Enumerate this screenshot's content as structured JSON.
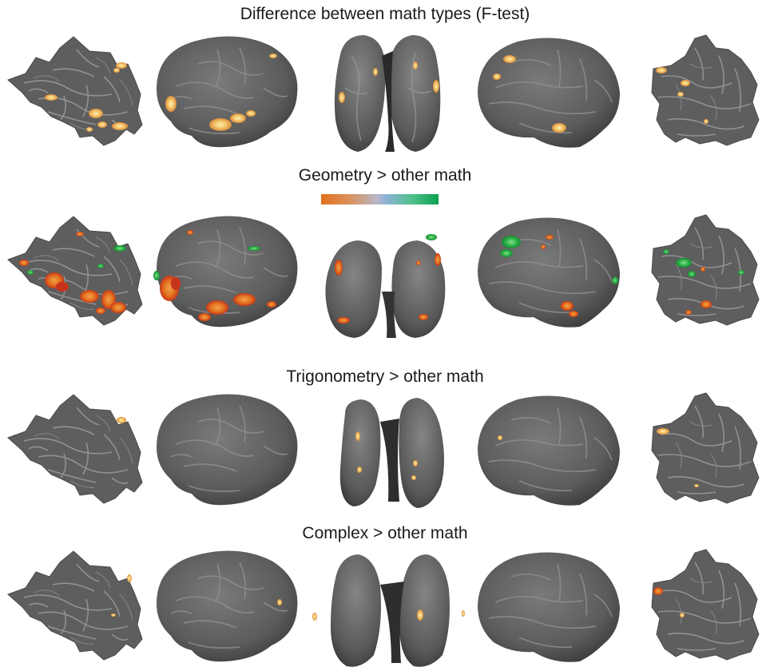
{
  "panels": [
    {
      "title": "Difference between math types (F-test)"
    },
    {
      "title": "Geometry > other math"
    },
    {
      "title": "Trigonometry > other math"
    },
    {
      "title": "Complex > other math"
    }
  ],
  "colorbar": {
    "low_color": "#e2711d",
    "mid_color": "#a8b6d4",
    "high_color": "#0aa04f"
  },
  "colors": {
    "cortex": "#5c5c5c",
    "sulcus": "#8a8a8a",
    "activation_yellow": "#f5d37a",
    "activation_orange": "#e27124",
    "activation_red": "#c8331c",
    "activation_green": "#22a33f"
  }
}
